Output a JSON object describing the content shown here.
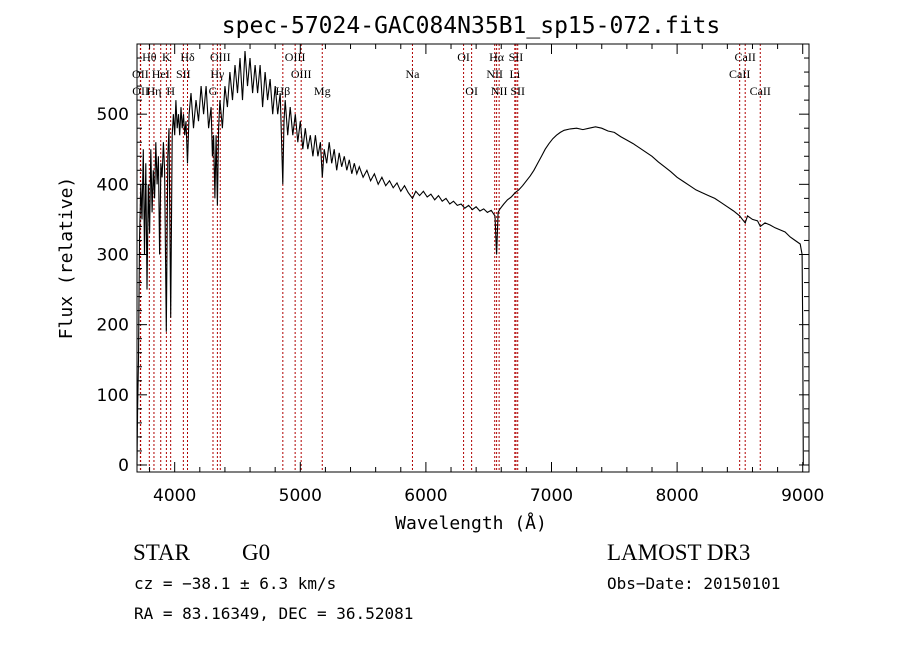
{
  "chart_data": {
    "type": "line",
    "title": "spec-57024-GAC084N35B1_sp15-072.fits",
    "xlabel": "Wavelength (Å)",
    "ylabel": "Flux (relative)",
    "xlim": [
      3700,
      9050
    ],
    "ylim": [
      -10,
      600
    ],
    "xticks": [
      4000,
      5000,
      6000,
      7000,
      8000,
      9000
    ],
    "yticks": [
      0,
      100,
      200,
      300,
      400,
      500
    ],
    "grid": false,
    "series": [
      {
        "name": "spectrum",
        "points": [
          [
            3700,
            0
          ],
          [
            3705,
            80
          ],
          [
            3712,
            150
          ],
          [
            3720,
            320
          ],
          [
            3730,
            400
          ],
          [
            3740,
            350
          ],
          [
            3750,
            450
          ],
          [
            3760,
            300
          ],
          [
            3770,
            430
          ],
          [
            3780,
            250
          ],
          [
            3790,
            400
          ],
          [
            3800,
            330
          ],
          [
            3810,
            450
          ],
          [
            3820,
            360
          ],
          [
            3830,
            420
          ],
          [
            3840,
            380
          ],
          [
            3850,
            460
          ],
          [
            3860,
            400
          ],
          [
            3870,
            440
          ],
          [
            3880,
            300
          ],
          [
            3890,
            430
          ],
          [
            3900,
            410
          ],
          [
            3910,
            460
          ],
          [
            3920,
            420
          ],
          [
            3933,
            190
          ],
          [
            3945,
            440
          ],
          [
            3955,
            480
          ],
          [
            3968,
            210
          ],
          [
            3980,
            470
          ],
          [
            3990,
            500
          ],
          [
            4000,
            470
          ],
          [
            4010,
            520
          ],
          [
            4020,
            480
          ],
          [
            4030,
            500
          ],
          [
            4040,
            470
          ],
          [
            4050,
            510
          ],
          [
            4060,
            480
          ],
          [
            4070,
            500
          ],
          [
            4080,
            470
          ],
          [
            4090,
            490
          ],
          [
            4102,
            430
          ],
          [
            4115,
            500
          ],
          [
            4130,
            530
          ],
          [
            4150,
            480
          ],
          [
            4170,
            520
          ],
          [
            4190,
            490
          ],
          [
            4210,
            540
          ],
          [
            4230,
            500
          ],
          [
            4250,
            540
          ],
          [
            4270,
            480
          ],
          [
            4290,
            510
          ],
          [
            4300,
            440
          ],
          [
            4310,
            470
          ],
          [
            4320,
            380
          ],
          [
            4330,
            470
          ],
          [
            4340,
            370
          ],
          [
            4350,
            480
          ],
          [
            4360,
            520
          ],
          [
            4380,
            480
          ],
          [
            4400,
            540
          ],
          [
            4420,
            510
          ],
          [
            4440,
            560
          ],
          [
            4460,
            520
          ],
          [
            4480,
            570
          ],
          [
            4500,
            530
          ],
          [
            4520,
            580
          ],
          [
            4540,
            520
          ],
          [
            4560,
            590
          ],
          [
            4580,
            540
          ],
          [
            4600,
            580
          ],
          [
            4620,
            530
          ],
          [
            4640,
            570
          ],
          [
            4660,
            530
          ],
          [
            4680,
            570
          ],
          [
            4700,
            510
          ],
          [
            4720,
            560
          ],
          [
            4740,
            520
          ],
          [
            4760,
            550
          ],
          [
            4780,
            500
          ],
          [
            4800,
            540
          ],
          [
            4820,
            500
          ],
          [
            4840,
            530
          ],
          [
            4861,
            400
          ],
          [
            4870,
            490
          ],
          [
            4880,
            520
          ],
          [
            4900,
            470
          ],
          [
            4920,
            510
          ],
          [
            4940,
            470
          ],
          [
            4960,
            500
          ],
          [
            4980,
            460
          ],
          [
            5000,
            490
          ],
          [
            5020,
            450
          ],
          [
            5040,
            480
          ],
          [
            5060,
            450
          ],
          [
            5080,
            470
          ],
          [
            5100,
            440
          ],
          [
            5120,
            470
          ],
          [
            5140,
            440
          ],
          [
            5160,
            460
          ],
          [
            5175,
            410
          ],
          [
            5190,
            450
          ],
          [
            5210,
            430
          ],
          [
            5230,
            460
          ],
          [
            5250,
            430
          ],
          [
            5270,
            450
          ],
          [
            5290,
            420
          ],
          [
            5310,
            445
          ],
          [
            5330,
            425
          ],
          [
            5350,
            440
          ],
          [
            5370,
            420
          ],
          [
            5390,
            435
          ],
          [
            5410,
            415
          ],
          [
            5430,
            430
          ],
          [
            5450,
            415
          ],
          [
            5470,
            425
          ],
          [
            5500,
            410
          ],
          [
            5530,
            420
          ],
          [
            5560,
            405
          ],
          [
            5590,
            415
          ],
          [
            5620,
            400
          ],
          [
            5650,
            410
          ],
          [
            5680,
            398
          ],
          [
            5710,
            405
          ],
          [
            5740,
            395
          ],
          [
            5770,
            402
          ],
          [
            5800,
            390
          ],
          [
            5830,
            398
          ],
          [
            5860,
            388
          ],
          [
            5893,
            380
          ],
          [
            5920,
            390
          ],
          [
            5950,
            384
          ],
          [
            5980,
            390
          ],
          [
            6010,
            382
          ],
          [
            6040,
            386
          ],
          [
            6070,
            378
          ],
          [
            6100,
            384
          ],
          [
            6130,
            376
          ],
          [
            6160,
            380
          ],
          [
            6190,
            372
          ],
          [
            6220,
            376
          ],
          [
            6250,
            370
          ],
          [
            6280,
            372
          ],
          [
            6310,
            366
          ],
          [
            6340,
            370
          ],
          [
            6370,
            364
          ],
          [
            6400,
            368
          ],
          [
            6430,
            362
          ],
          [
            6460,
            365
          ],
          [
            6490,
            360
          ],
          [
            6520,
            363
          ],
          [
            6550,
            355
          ],
          [
            6563,
            300
          ],
          [
            6575,
            360
          ],
          [
            6590,
            365
          ],
          [
            6620,
            372
          ],
          [
            6650,
            378
          ],
          [
            6680,
            382
          ],
          [
            6710,
            388
          ],
          [
            6740,
            392
          ],
          [
            6770,
            398
          ],
          [
            6800,
            405
          ],
          [
            6830,
            412
          ],
          [
            6860,
            420
          ],
          [
            6890,
            430
          ],
          [
            6920,
            440
          ],
          [
            6950,
            450
          ],
          [
            6980,
            458
          ],
          [
            7010,
            465
          ],
          [
            7040,
            470
          ],
          [
            7070,
            474
          ],
          [
            7100,
            477
          ],
          [
            7150,
            479
          ],
          [
            7200,
            480
          ],
          [
            7250,
            478
          ],
          [
            7300,
            480
          ],
          [
            7350,
            482
          ],
          [
            7400,
            480
          ],
          [
            7450,
            476
          ],
          [
            7500,
            474
          ],
          [
            7550,
            468
          ],
          [
            7600,
            463
          ],
          [
            7650,
            458
          ],
          [
            7700,
            452
          ],
          [
            7750,
            446
          ],
          [
            7800,
            440
          ],
          [
            7850,
            432
          ],
          [
            7900,
            425
          ],
          [
            7950,
            418
          ],
          [
            8000,
            410
          ],
          [
            8050,
            404
          ],
          [
            8100,
            398
          ],
          [
            8150,
            392
          ],
          [
            8200,
            388
          ],
          [
            8250,
            384
          ],
          [
            8300,
            380
          ],
          [
            8350,
            374
          ],
          [
            8400,
            368
          ],
          [
            8450,
            362
          ],
          [
            8498,
            355
          ],
          [
            8520,
            350
          ],
          [
            8542,
            345
          ],
          [
            8560,
            355
          ],
          [
            8600,
            350
          ],
          [
            8640,
            348
          ],
          [
            8662,
            340
          ],
          [
            8700,
            345
          ],
          [
            8740,
            342
          ],
          [
            8780,
            338
          ],
          [
            8820,
            335
          ],
          [
            8860,
            332
          ],
          [
            8900,
            325
          ],
          [
            8940,
            320
          ],
          [
            8980,
            315
          ],
          [
            8995,
            300
          ],
          [
            9000,
            200
          ],
          [
            9005,
            0
          ]
        ]
      }
    ],
    "lines": [
      {
        "label": "Hθ",
        "x": 3798,
        "row": 0
      },
      {
        "label": "K",
        "x": 3934,
        "row": 0
      },
      {
        "label": "Hδ",
        "x": 4102,
        "row": 0
      },
      {
        "label": "OIII",
        "x": 4363,
        "row": 0
      },
      {
        "label": "OIII",
        "x": 4959,
        "row": 0
      },
      {
        "label": "OI",
        "x": 6300,
        "row": 0
      },
      {
        "label": "Hα",
        "x": 6563,
        "row": 0
      },
      {
        "label": "SII",
        "x": 6717,
        "row": 0
      },
      {
        "label": "CaII",
        "x": 8542,
        "row": 0
      },
      {
        "label": "OII",
        "x": 3727,
        "row": 1
      },
      {
        "label": "HeI",
        "x": 3889,
        "row": 1
      },
      {
        "label": "SII",
        "x": 4069,
        "row": 1
      },
      {
        "label": "Hγ",
        "x": 4340,
        "row": 1
      },
      {
        "label": "OIII",
        "x": 5007,
        "row": 1
      },
      {
        "label": "Na",
        "x": 5893,
        "row": 1
      },
      {
        "label": "NII",
        "x": 6548,
        "row": 1
      },
      {
        "label": "Li",
        "x": 6708,
        "row": 1
      },
      {
        "label": "CaII",
        "x": 8498,
        "row": 1
      },
      {
        "label": "OII",
        "x": 3729,
        "row": 2
      },
      {
        "label": "Hη",
        "x": 3835,
        "row": 2
      },
      {
        "label": "H",
        "x": 3968,
        "row": 2
      },
      {
        "label": "G",
        "x": 4305,
        "row": 2
      },
      {
        "label": "Hβ",
        "x": 4861,
        "row": 2
      },
      {
        "label": "Mg",
        "x": 5175,
        "row": 2
      },
      {
        "label": "OI",
        "x": 6364,
        "row": 2
      },
      {
        "label": "NII",
        "x": 6583,
        "row": 2
      },
      {
        "label": "SII",
        "x": 6731,
        "row": 2
      },
      {
        "label": "CaII",
        "x": 8662,
        "row": 2
      }
    ]
  },
  "info": {
    "class_label": "STAR",
    "subclass": "G0",
    "survey": "LAMOST DR3",
    "cz_text": "cz = −38.1 ± 6.3 km/s",
    "obs_date": "Obs−Date: 20150101",
    "coords": "RA =  83.16349, DEC =  36.52081"
  }
}
